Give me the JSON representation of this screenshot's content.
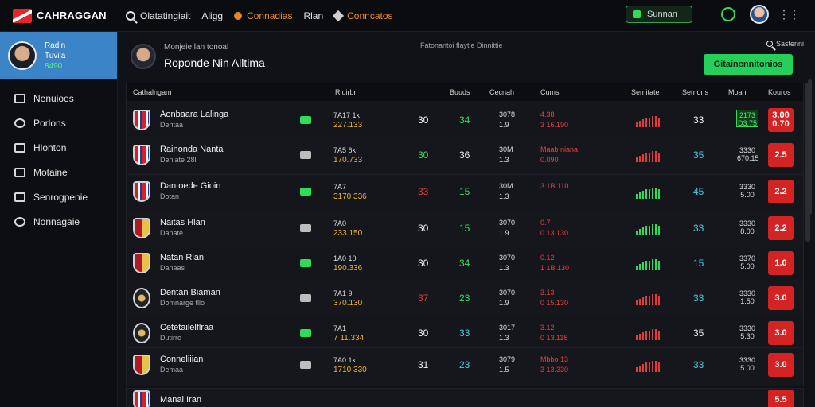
{
  "brand": {
    "name": "CAHRAGGAN",
    "accent": "#e3262c"
  },
  "nav": {
    "search": "Olatatingiait",
    "item2": "Aligg",
    "item3": "Connadias",
    "item4": "Rlan",
    "item5": "Conncatos"
  },
  "status": {
    "label": "Sunnan"
  },
  "profile": {
    "line1": "Radin",
    "line2": "Tuvila",
    "line3": "8490"
  },
  "sidebar": [
    "Nenuioes",
    "Porlons",
    "Hlonton",
    "Motaine",
    "Senrogpenie",
    "Nonnagaie"
  ],
  "header": {
    "sub": "Monjeie lan tonoal",
    "title": "Roponde Nin Alltima",
    "mid": "Fatonantoi flaytie Dinnittie",
    "right": "Sastenni",
    "cta": "Gitaincnnitonios"
  },
  "columns": [
    "Cathalngam",
    "Rluirbr",
    "Buuds",
    "Cecnah",
    "Cums",
    "Semitate",
    "Semons",
    "Moan",
    "Kouros"
  ],
  "rows": [
    {
      "name": "Aonbaara Lalinga",
      "sub": "Dentaa",
      "c1a": "7A17  1k",
      "c1b": "227.133",
      "a": "30",
      "b": "34",
      "c": "3078\n1.9",
      "d": "4.38\n3 16.190",
      "e": "33",
      "o1": "2173\nD3.75",
      "o2": "3.00\n0.70"
    },
    {
      "name": "Rainonda Nanta",
      "sub": "Deniate 28ll",
      "c1a": "7A5  6k",
      "c1b": "170.733",
      "a": "30",
      "b": "36",
      "c": "30M\n1.3",
      "d": "Maab niana\n0.090",
      "e": "35",
      "o1": "3330\n670.15",
      "o2": "2.5\n"
    },
    {
      "name": "Dantoede Gioin",
      "sub": "Dotan",
      "c1a": "7A7",
      "c1b": "3170 336",
      "a": "33",
      "b": "15",
      "c": "30M\n1.3",
      "d": "3 1B.110",
      "e": "45",
      "o1": "3330\n5.00",
      "o2": "2.2\n"
    },
    {
      "name": "Naitas Hlan",
      "sub": "Danate",
      "c1a": "7A0",
      "c1b": "233.150",
      "a": "30",
      "b": "15",
      "c": "3070\n1.9",
      "d": "0.7\n0 13.130",
      "e": "33",
      "o1": "3330\n8.00",
      "o2": "2.2\n"
    },
    {
      "name": "Natan Rlan",
      "sub": "Danaas",
      "c1a": "1A0  10",
      "c1b": "190.336",
      "a": "30",
      "b": "34",
      "c": "3070\n1.3",
      "d": "0.12\n1 1B.130",
      "e": "15",
      "o1": "3370\n5.00",
      "o2": "1.0\n"
    },
    {
      "name": "Dentan Biaman",
      "sub": "Domnarge tllo",
      "c1a": "7A1  9",
      "c1b": "370.130",
      "a": "37",
      "b": "23",
      "c": "3070\n1.9",
      "d": "3.13\n0 15.130",
      "e": "33",
      "o1": "3330\n1.50",
      "o2": "3.0\n"
    },
    {
      "name": "Cetetailelflraa",
      "sub": "Dutirro",
      "c1a": "7A1",
      "c1b": "7 11.334",
      "a": "30",
      "b": "33",
      "c": "3017\n1.3",
      "d": "3.12\n0 13.118",
      "e": "35",
      "o1": "3330\n5.30",
      "o2": "3.0\n"
    },
    {
      "name": "Conneliiian",
      "sub": "Demaa",
      "c1a": "7A0  1k",
      "c1b": "1710 330",
      "a": "31",
      "b": "23",
      "c": "3079\n1.5",
      "d": "Mbbo 13\n3 13.330",
      "e": "33",
      "o1": "3330\n5.00",
      "o2": "3.0\n"
    }
  ],
  "last": {
    "name": "Manai Iran",
    "o2": "5.5"
  }
}
